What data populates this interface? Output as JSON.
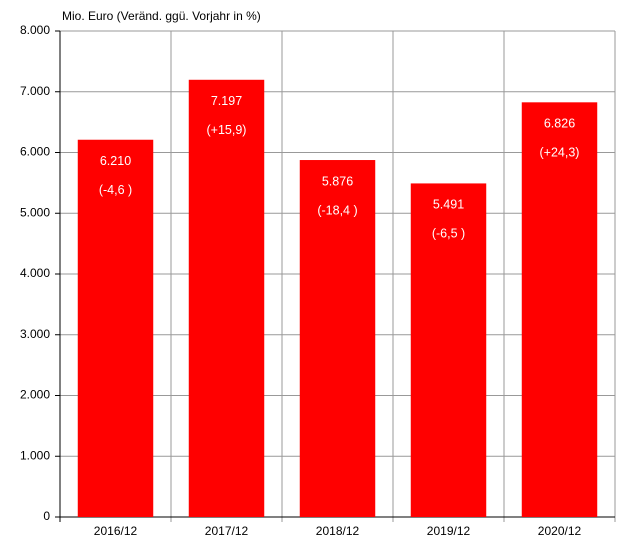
{
  "chart_data": {
    "type": "bar",
    "y_axis_label": "Mio. Euro (Veränd. ggü. Vorjahr in %)",
    "categories": [
      "2016/12",
      "2017/12",
      "2018/12",
      "2019/12",
      "2020/12"
    ],
    "values": [
      6210,
      7197,
      5876,
      5491,
      6826
    ],
    "value_labels": [
      "6.210",
      "7.197",
      "5.876",
      "5.491",
      "6.826"
    ],
    "change_labels": [
      "(-4,6 )",
      "(+15,9)",
      "(-18,4 )",
      "(-6,5 )",
      "(+24,3)"
    ],
    "color": "#ff0000",
    "ylim": [
      0,
      8000
    ],
    "yticks": [
      0,
      {
        "value": 1000,
        "label": "1.000"
      },
      {
        "value": 2000,
        "label": "2.000"
      },
      {
        "value": 3000,
        "label": "3.000"
      },
      {
        "value": 4000,
        "label": "4.000"
      },
      {
        "value": 5000,
        "label": "5.000"
      },
      {
        "value": 6000,
        "label": "6.000"
      },
      {
        "value": 7000,
        "label": "7.000"
      },
      {
        "value": 8000,
        "label": "8.000"
      }
    ],
    "grid": true
  }
}
